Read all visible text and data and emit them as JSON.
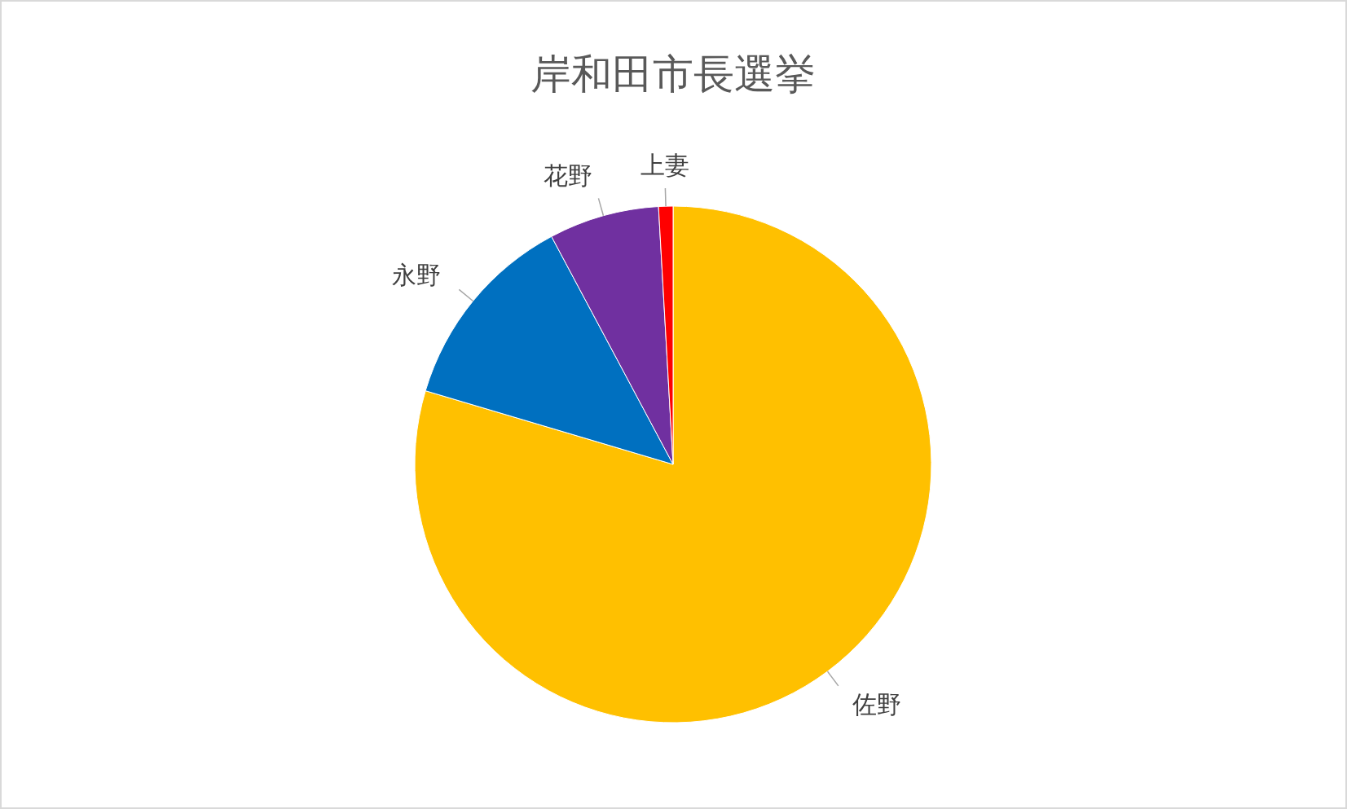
{
  "chart_data": {
    "type": "pie",
    "title": "岸和田市長選挙",
    "categories": [
      "佐野",
      "永野",
      "花野",
      "上妻"
    ],
    "values": [
      79.6,
      12.6,
      6.9,
      0.9
    ],
    "colors": [
      "#ffc000",
      "#0070c0",
      "#7030a0",
      "#ff0000"
    ]
  }
}
